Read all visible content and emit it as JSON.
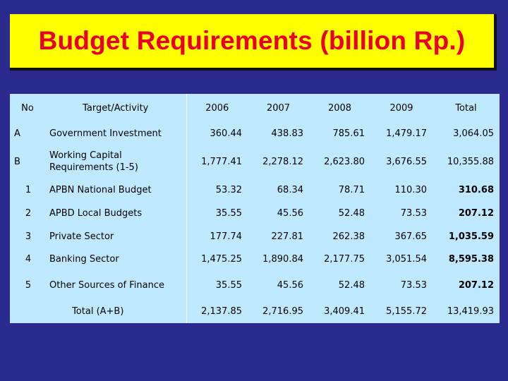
{
  "title": "Budget Requirements (billion Rp.)",
  "table": {
    "headers": [
      "No",
      "Target/Activity",
      "2006",
      "2007",
      "2008",
      "2009",
      "Total"
    ],
    "rows": [
      {
        "no": "A",
        "activity": "Government Investment",
        "values": [
          "360.44",
          "438.83",
          "785.61",
          "1,479.17",
          "3,064.05"
        ]
      },
      {
        "no": "B",
        "activity": "Working Capital Requirements (1-5)",
        "values": [
          "1,777.41",
          "2,278.12",
          "2,623.80",
          "3,676.55",
          "10,355.88"
        ]
      },
      {
        "no": "1",
        "activity": "APBN National Budget",
        "values": [
          "53.32",
          "68.34",
          "78.71",
          "110.30",
          "310.68"
        ]
      },
      {
        "no": "2",
        "activity": "APBD Local Budgets",
        "values": [
          "35.55",
          "45.56",
          "52.48",
          "73.53",
          "207.12"
        ]
      },
      {
        "no": "3",
        "activity": "Private Sector",
        "values": [
          "177.74",
          "227.81",
          "262.38",
          "367.65",
          "1,035.59"
        ]
      },
      {
        "no": "4",
        "activity": "Banking Sector",
        "values": [
          "1,475.25",
          "1,890.84",
          "2,177.75",
          "3,051.54",
          "8,595.38"
        ]
      },
      {
        "no": "5",
        "activity": "Other Sources of Finance",
        "values": [
          "35.55",
          "45.56",
          "52.48",
          "73.53",
          "207.12"
        ]
      }
    ],
    "total": {
      "label": "Total (A+B)",
      "values": [
        "2,137.85",
        "2,716.95",
        "3,409.41",
        "5,155.72",
        "13,419.93"
      ]
    }
  },
  "colors": {
    "background": "#2b2b8f",
    "title_box": "#ffff00",
    "title_text": "#e8002a",
    "table_bg": "#bfe9ff"
  }
}
